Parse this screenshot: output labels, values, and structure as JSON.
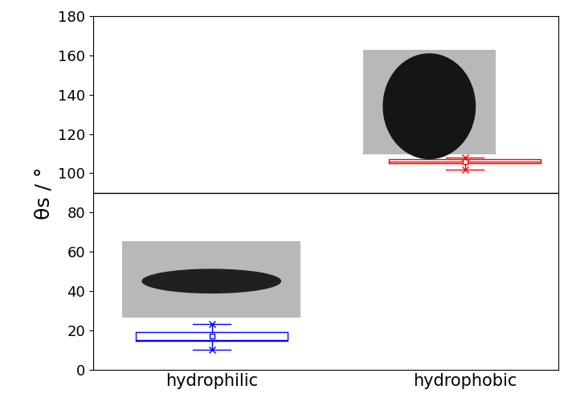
{
  "chart_data": {
    "type": "box",
    "y_label": "θs / °",
    "categories": [
      "hydrophilic",
      "hydrophobic"
    ],
    "boxes": [
      {
        "whisker_low": 10,
        "q1": 14.5,
        "median": 15,
        "q3": 19,
        "whisker_high": 23,
        "mean": 17,
        "min": 10,
        "max": 23
      },
      {
        "whisker_low": 102,
        "q1": 105,
        "median": 106,
        "q3": 107,
        "whisker_high": 108,
        "mean": 106,
        "min": 102,
        "max": 108
      }
    ],
    "colors": [
      "#0000ff",
      "#ff0000"
    ],
    "reference_line": 90,
    "ylim": [
      0,
      180
    ],
    "yticks": [
      0,
      20,
      40,
      60,
      80,
      100,
      120,
      140,
      160,
      180
    ],
    "grid": false
  }
}
